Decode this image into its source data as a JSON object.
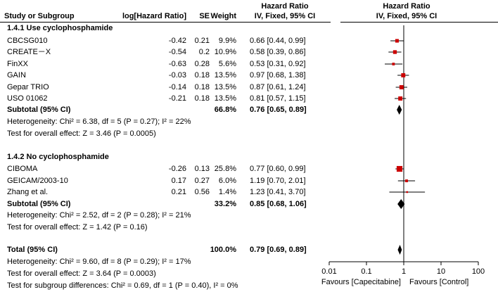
{
  "header": {
    "col_study": "Study or Subgroup",
    "col_log": "log[Hazard Ratio]",
    "col_se": "SE",
    "col_weight": "Weight",
    "col_hr_title": "Hazard Ratio",
    "col_hr_sub": "IV, Fixed, 95% CI",
    "plot_title": "Hazard Ratio",
    "plot_sub": "IV, Fixed, 95% CI"
  },
  "groups": [
    {
      "title": "1.4.1 Use cyclophosphamide",
      "studies": [
        {
          "name": "CBCSG010",
          "loghr": "-0.42",
          "se": "0.21",
          "weight": "9.9%",
          "ci": "0.66 [0.44, 0.99]"
        },
        {
          "name": "CREATE－X",
          "loghr": "-0.54",
          "se": "0.2",
          "weight": "10.9%",
          "ci": "0.58 [0.39, 0.86]"
        },
        {
          "name": "FinXX",
          "loghr": "-0.63",
          "se": "0.28",
          "weight": "5.6%",
          "ci": "0.53 [0.31, 0.92]"
        },
        {
          "name": "GAIN",
          "loghr": "-0.03",
          "se": "0.18",
          "weight": "13.5%",
          "ci": "0.97 [0.68, 1.38]"
        },
        {
          "name": "Gepar TRIO",
          "loghr": "-0.14",
          "se": "0.18",
          "weight": "13.5%",
          "ci": "0.87 [0.61, 1.24]"
        },
        {
          "name": "USO 01062",
          "loghr": "-0.21",
          "se": "0.18",
          "weight": "13.5%",
          "ci": "0.81 [0.57, 1.15]"
        }
      ],
      "subtotal": {
        "label": "Subtotal (95% CI)",
        "weight": "66.8%",
        "ci": "0.76 [0.65, 0.89]"
      },
      "heterogeneity": "Heterogeneity: Chi² = 6.38, df = 5 (P = 0.27); I² = 22%",
      "overall": "Test for overall effect: Z = 3.46 (P = 0.0005)"
    },
    {
      "title": "1.4.2 No cyclophosphamide",
      "studies": [
        {
          "name": "CIBOMA",
          "loghr": "-0.26",
          "se": "0.13",
          "weight": "25.8%",
          "ci": "0.77 [0.60, 0.99]"
        },
        {
          "name": "GEICAM/2003-10",
          "loghr": "0.17",
          "se": "0.27",
          "weight": "6.0%",
          "ci": "1.19 [0.70, 2.01]"
        },
        {
          "name": "Zhang et al.",
          "loghr": "0.21",
          "se": "0.56",
          "weight": "1.4%",
          "ci": "1.23 [0.41, 3.70]"
        }
      ],
      "subtotal": {
        "label": "Subtotal (95% CI)",
        "weight": "33.2%",
        "ci": "0.85 [0.68, 1.06]"
      },
      "heterogeneity": "Heterogeneity: Chi² = 2.52, df = 2 (P = 0.28); I² = 21%",
      "overall": "Test for overall effect: Z = 1.42 (P = 0.16)"
    }
  ],
  "total": {
    "label": "Total (95% CI)",
    "weight": "100.0%",
    "ci": "0.79 [0.69, 0.89]",
    "heterogeneity": "Heterogeneity: Chi² = 9.60, df = 8 (P = 0.29); I² = 17%",
    "overall": "Test for overall effect: Z = 3.64 (P = 0.0003)",
    "subgroup": "Test for subgroup differences: Chi² = 0.69, df = 1 (P = 0.40), I² = 0%"
  },
  "colors": {
    "marker": "#cc0000",
    "line": "#000000"
  },
  "chart_data": {
    "type": "forest",
    "scale": "log",
    "xlim": [
      0.01,
      100
    ],
    "reference_line": 1,
    "x_ticks": [
      "0.01",
      "0.1",
      "1",
      "10",
      "100"
    ],
    "x_tick_values": [
      0.01,
      0.1,
      1,
      10,
      100
    ],
    "favours_left": "Favours [Capecitabine]",
    "favours_right": "Favours [Control]",
    "studies": [
      {
        "name": "CBCSG010",
        "hr": 0.66,
        "lo": 0.44,
        "hi": 0.99,
        "weight": 9.9
      },
      {
        "name": "CREATE－X",
        "hr": 0.58,
        "lo": 0.39,
        "hi": 0.86,
        "weight": 10.9
      },
      {
        "name": "FinXX",
        "hr": 0.53,
        "lo": 0.31,
        "hi": 0.92,
        "weight": 5.6
      },
      {
        "name": "GAIN",
        "hr": 0.97,
        "lo": 0.68,
        "hi": 1.38,
        "weight": 13.5
      },
      {
        "name": "Gepar TRIO",
        "hr": 0.87,
        "lo": 0.61,
        "hi": 1.24,
        "weight": 13.5
      },
      {
        "name": "USO 01062",
        "hr": 0.81,
        "lo": 0.57,
        "hi": 1.15,
        "weight": 13.5
      },
      {
        "name": "CIBOMA",
        "hr": 0.77,
        "lo": 0.6,
        "hi": 0.99,
        "weight": 25.8
      },
      {
        "name": "GEICAM/2003-10",
        "hr": 1.19,
        "lo": 0.7,
        "hi": 2.01,
        "weight": 6.0
      },
      {
        "name": "Zhang et al.",
        "hr": 1.23,
        "lo": 0.41,
        "hi": 3.7,
        "weight": 1.4
      }
    ],
    "summaries": [
      {
        "name": "Subtotal 1.4.1",
        "hr": 0.76,
        "lo": 0.65,
        "hi": 0.89
      },
      {
        "name": "Subtotal 1.4.2",
        "hr": 0.85,
        "lo": 0.68,
        "hi": 1.06
      },
      {
        "name": "Total",
        "hr": 0.79,
        "lo": 0.69,
        "hi": 0.89
      }
    ]
  }
}
